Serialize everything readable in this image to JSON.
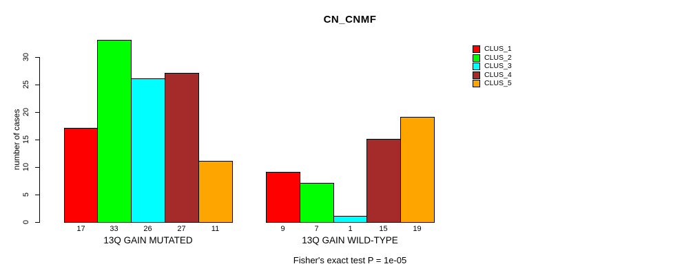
{
  "title": "CN_CNMF",
  "ylabel": "number of cases",
  "footer": "Fisher's exact test P = 1e-05",
  "legend": {
    "position": "top-right",
    "items": [
      {
        "label": "CLUS_1",
        "color": "#FF0000"
      },
      {
        "label": "CLUS_2",
        "color": "#00FF00"
      },
      {
        "label": "CLUS_3",
        "color": "#00FFFF"
      },
      {
        "label": "CLUS_4",
        "color": "#A52A2A"
      },
      {
        "label": "CLUS_5",
        "color": "#FFA500"
      }
    ]
  },
  "chart_data": {
    "type": "bar",
    "title": "CN_CNMF",
    "xlabel": "",
    "ylabel": "number of cases",
    "ylim": [
      0,
      33
    ],
    "yticks": [
      0,
      5,
      10,
      15,
      20,
      25,
      30
    ],
    "grid": false,
    "legend_position": "top-right",
    "series_names": [
      "CLUS_1",
      "CLUS_2",
      "CLUS_3",
      "CLUS_4",
      "CLUS_5"
    ],
    "series_colors": [
      "#FF0000",
      "#00FF00",
      "#00FFFF",
      "#A52A2A",
      "#FFA500"
    ],
    "groups": [
      {
        "label": "13Q GAIN MUTATED",
        "values": [
          17,
          33,
          26,
          27,
          11
        ]
      },
      {
        "label": "13Q GAIN WILD-TYPE",
        "values": [
          9,
          7,
          1,
          15,
          19
        ]
      }
    ],
    "bar_value_labels_shown": true,
    "annotation": "Fisher's exact test P = 1e-05"
  }
}
